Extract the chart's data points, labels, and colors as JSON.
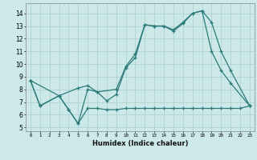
{
  "color": "#2a7a7a",
  "bg_color": "#cce8e8",
  "grid_color": "#aacfcf",
  "xlabel": "Humidex (Indice chaleur)",
  "xlim": [
    -0.5,
    23.5
  ],
  "ylim": [
    4.7,
    14.8
  ],
  "yticks": [
    5,
    6,
    7,
    8,
    9,
    10,
    11,
    12,
    13,
    14
  ],
  "xticks": [
    0,
    1,
    2,
    3,
    4,
    5,
    6,
    7,
    8,
    9,
    10,
    11,
    12,
    13,
    14,
    15,
    16,
    17,
    18,
    19,
    20,
    21,
    22,
    23
  ],
  "line1_x": [
    0,
    1,
    3,
    4,
    5,
    6,
    7,
    8,
    9,
    10,
    11,
    12,
    13,
    14,
    15,
    16,
    17,
    18,
    19,
    20,
    21,
    23
  ],
  "line1_y": [
    8.7,
    6.7,
    7.5,
    6.4,
    5.3,
    8.0,
    7.8,
    7.1,
    7.6,
    9.7,
    10.5,
    13.1,
    13.0,
    13.0,
    12.6,
    13.2,
    14.0,
    14.2,
    11.0,
    9.5,
    8.5,
    6.7
  ],
  "line2_x": [
    0,
    3,
    5,
    6,
    7,
    9,
    10,
    11,
    12,
    13,
    14,
    15,
    16,
    17,
    18,
    19,
    20,
    21,
    23
  ],
  "line2_y": [
    8.7,
    7.5,
    8.1,
    8.3,
    7.8,
    8.0,
    9.8,
    10.8,
    13.1,
    13.0,
    13.0,
    12.7,
    13.3,
    14.0,
    14.2,
    13.3,
    11.0,
    9.5,
    6.7
  ],
  "line3_x": [
    0,
    1,
    3,
    4,
    5,
    6,
    7,
    8,
    9,
    10,
    11,
    12,
    13,
    14,
    15,
    16,
    17,
    18,
    19,
    20,
    21,
    22,
    23
  ],
  "line3_y": [
    8.7,
    6.7,
    7.5,
    6.4,
    5.3,
    6.5,
    6.5,
    6.4,
    6.4,
    6.5,
    6.5,
    6.5,
    6.5,
    6.5,
    6.5,
    6.5,
    6.5,
    6.5,
    6.5,
    6.5,
    6.5,
    6.5,
    6.7
  ]
}
